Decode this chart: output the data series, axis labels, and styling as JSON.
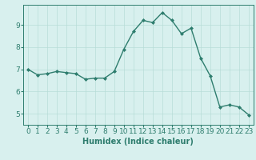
{
  "x": [
    0,
    1,
    2,
    3,
    4,
    5,
    6,
    7,
    8,
    9,
    10,
    11,
    12,
    13,
    14,
    15,
    16,
    17,
    18,
    19,
    20,
    21,
    22,
    23
  ],
  "y": [
    7.0,
    6.75,
    6.8,
    6.9,
    6.85,
    6.8,
    6.55,
    6.6,
    6.6,
    6.9,
    7.9,
    8.7,
    9.2,
    9.1,
    9.55,
    9.2,
    8.6,
    8.85,
    7.5,
    6.7,
    5.3,
    5.4,
    5.3,
    4.95
  ],
  "line_color": "#2e7d6e",
  "marker": "D",
  "marker_size": 2.0,
  "bg_color": "#d8f0ee",
  "grid_color": "#b8ddd8",
  "xlabel": "Humidex (Indice chaleur)",
  "xlabel_fontsize": 7,
  "tick_fontsize": 6.5,
  "ylim": [
    4.5,
    9.9
  ],
  "xlim": [
    -0.5,
    23.5
  ],
  "yticks": [
    5,
    6,
    7,
    8,
    9
  ],
  "xticks": [
    0,
    1,
    2,
    3,
    4,
    5,
    6,
    7,
    8,
    9,
    10,
    11,
    12,
    13,
    14,
    15,
    16,
    17,
    18,
    19,
    20,
    21,
    22,
    23
  ],
  "linewidth": 1.0
}
